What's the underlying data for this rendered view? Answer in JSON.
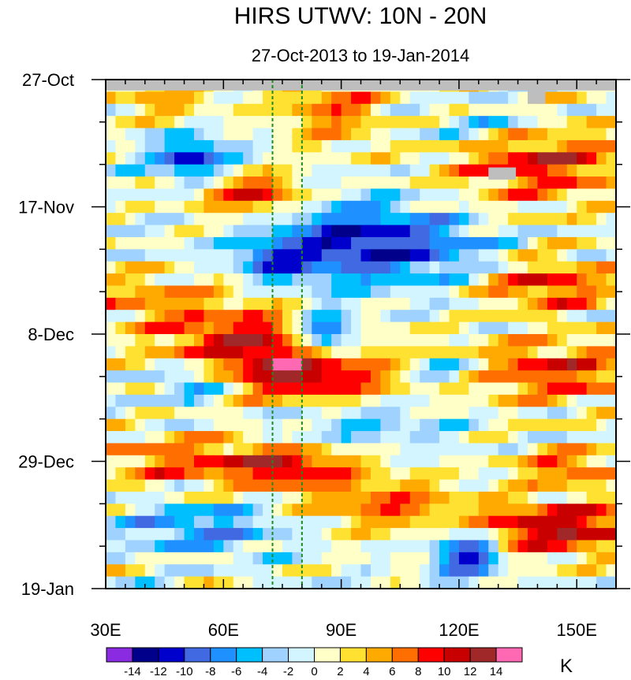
{
  "chart_data": {
    "type": "heatmap",
    "title": "HIRS UTWV: 10N - 20N",
    "subtitle": "27-Oct-2013 to 19-Jan-2014",
    "xlabel": "",
    "ylabel": "",
    "x_range": [
      30,
      160
    ],
    "y_range_days": [
      0,
      84
    ],
    "x_ticks": [
      {
        "value": 30,
        "label": "30E"
      },
      {
        "value": 60,
        "label": "60E"
      },
      {
        "value": 90,
        "label": "90E"
      },
      {
        "value": 120,
        "label": "120E"
      },
      {
        "value": 150,
        "label": "150E"
      }
    ],
    "y_ticks": [
      {
        "day": 0,
        "label": "27-Oct"
      },
      {
        "day": 21,
        "label": "17-Nov"
      },
      {
        "day": 42,
        "label": "8-Dec"
      },
      {
        "day": 63,
        "label": "29-Dec"
      },
      {
        "day": 84,
        "label": "19-Jan"
      }
    ],
    "reference_lines_lon": [
      72.5,
      80
    ],
    "reference_line_color": "#1e8c1e",
    "missing_color": "#bebebe",
    "missing_data": [
      {
        "lon_start": 30,
        "lon_end": 160,
        "day_start": 0,
        "day_end": 1.8
      },
      {
        "lon_start": 137.5,
        "lon_end": 142,
        "day_start": 1.8,
        "day_end": 4
      },
      {
        "lon_start": 127.5,
        "lon_end": 134.5,
        "day_start": 14.5,
        "day_end": 16.5
      }
    ],
    "colorbar": {
      "unit": "K",
      "colors": [
        "#8a2be2",
        "#00008b",
        "#0000cd",
        "#4169e1",
        "#1e90ff",
        "#00bfff",
        "#a0d2ff",
        "#d2f5ff",
        "#ffffc8",
        "#ffe132",
        "#ffaa00",
        "#ff6e00",
        "#ff0000",
        "#c80000",
        "#a02828",
        "#ff69b4"
      ],
      "labels": [
        "-14",
        "-12",
        "-10",
        "-8",
        "-6",
        "-4",
        "-2",
        "0",
        "2",
        "4",
        "6",
        "8",
        "10",
        "12",
        "14"
      ]
    },
    "anomaly_features": [
      {
        "lon": 140,
        "day": 48,
        "a": 9,
        "lon_sig": 22,
        "day_sig": 3.5,
        "slope": 0
      },
      {
        "lon": 45,
        "day": 3,
        "a": 5,
        "lon_sig": 10,
        "day_sig": 2.5,
        "slope": 0
      },
      {
        "lon": 88,
        "day": 5,
        "a": 7,
        "lon_sig": 10,
        "day_sig": 4,
        "slope": 0
      },
      {
        "lon": 140,
        "day": 13,
        "a": 10,
        "lon_sig": 16,
        "day_sig": 5,
        "slope": 0
      },
      {
        "lon": 52,
        "day": 13,
        "a": -11,
        "lon_sig": 7,
        "day_sig": 2.5,
        "slope": 0
      },
      {
        "lon": 68,
        "day": 19,
        "a": 10,
        "lon_sig": 10,
        "day_sig": 2.5,
        "slope": 0
      },
      {
        "lon": 90,
        "day": 27,
        "a": -10,
        "lon_sig": 16,
        "day_sig": 5,
        "slope": 0.3
      },
      {
        "lon": 72,
        "day": 30,
        "a": -6,
        "lon_sig": 6,
        "day_sig": 2,
        "slope": 0
      },
      {
        "lon": 86,
        "day": 42,
        "a": -13,
        "lon_sig": 5,
        "day_sig": 2.5,
        "slope": 0
      },
      {
        "lon": 65,
        "day": 43,
        "a": 10,
        "lon_sig": 16,
        "day_sig": 4,
        "slope": 0
      },
      {
        "lon": 82,
        "day": 49,
        "a": 11,
        "lon_sig": 14,
        "day_sig": 3,
        "slope": 0
      },
      {
        "lon": 42,
        "day": 36,
        "a": 5,
        "lon_sig": 14,
        "day_sig": 3,
        "slope": 0
      },
      {
        "lon": 52,
        "day": 50,
        "a": -8,
        "lon_sig": 6,
        "day_sig": 2,
        "slope": 0
      },
      {
        "lon": 118,
        "day": 48,
        "a": -9,
        "lon_sig": 8,
        "day_sig": 2,
        "slope": 0
      },
      {
        "lon": 143,
        "day": 34,
        "a": 9,
        "lon_sig": 12,
        "day_sig": 3,
        "slope": 0
      },
      {
        "lon": 50,
        "day": 63,
        "a": 7,
        "lon_sig": 18,
        "day_sig": 3,
        "slope": 0
      },
      {
        "lon": 78,
        "day": 64,
        "a": 9,
        "lon_sig": 12,
        "day_sig": 2.5,
        "slope": 0
      },
      {
        "lon": 145,
        "day": 74,
        "a": 12,
        "lon_sig": 18,
        "day_sig": 3,
        "slope": 0
      },
      {
        "lon": 122,
        "day": 78,
        "a": -13,
        "lon_sig": 6,
        "day_sig": 3,
        "slope": 0
      },
      {
        "lon": 55,
        "day": 74,
        "a": -7,
        "lon_sig": 14,
        "day_sig": 3,
        "slope": 0
      },
      {
        "lon": 148,
        "day": 64,
        "a": 8,
        "lon_sig": 10,
        "day_sig": 2,
        "slope": 0
      },
      {
        "lon": 112,
        "day": 28,
        "a": -5,
        "lon_sig": 14,
        "day_sig": 4,
        "slope": 0
      },
      {
        "lon": 100,
        "day": 70,
        "a": 7,
        "lon_sig": 14,
        "day_sig": 3,
        "slope": 0
      },
      {
        "lon": 130,
        "day": 8,
        "a": -6,
        "lon_sig": 14,
        "day_sig": 2.5,
        "slope": 0
      },
      {
        "lon": 95,
        "day": 57,
        "a": -4,
        "lon_sig": 16,
        "day_sig": 3,
        "slope": 0
      }
    ]
  }
}
